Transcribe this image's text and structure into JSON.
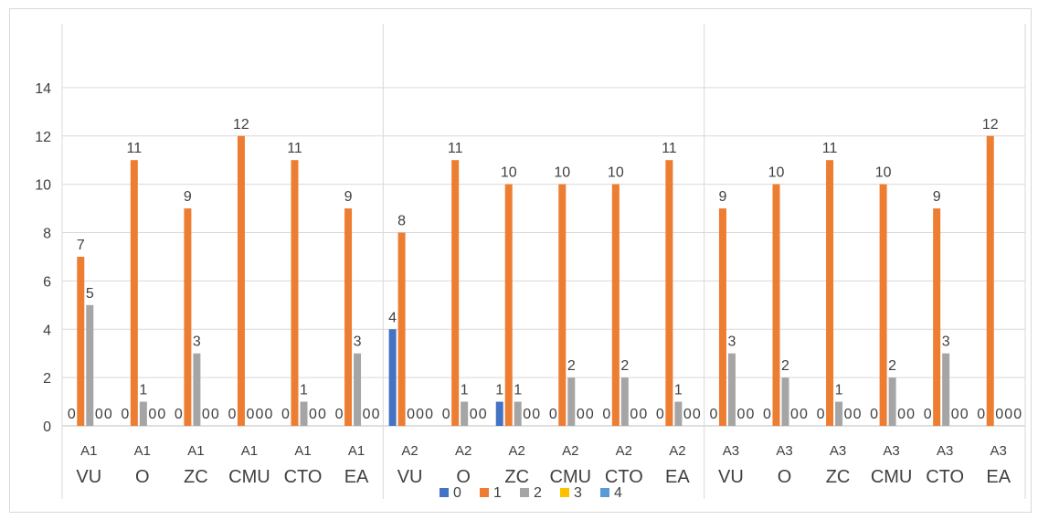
{
  "chart_data": {
    "type": "bar",
    "title": "",
    "xlabel": "",
    "ylabel": "",
    "ylim": [
      0,
      16
    ],
    "yticks": [
      0,
      2,
      4,
      6,
      8,
      10,
      12,
      14
    ],
    "grid": true,
    "legend_position": "bottom",
    "categories": [
      {
        "top": "A1",
        "bottom": "VU"
      },
      {
        "top": "A1",
        "bottom": "O"
      },
      {
        "top": "A1",
        "bottom": "ZC"
      },
      {
        "top": "A1",
        "bottom": "CMU"
      },
      {
        "top": "A1",
        "bottom": "CTO"
      },
      {
        "top": "A1",
        "bottom": "EA"
      },
      {
        "top": "A2",
        "bottom": "VU"
      },
      {
        "top": "A2",
        "bottom": "O"
      },
      {
        "top": "A2",
        "bottom": "ZC"
      },
      {
        "top": "A2",
        "bottom": "CMU"
      },
      {
        "top": "A2",
        "bottom": "CTO"
      },
      {
        "top": "A2",
        "bottom": "EA"
      },
      {
        "top": "A3",
        "bottom": "VU"
      },
      {
        "top": "A3",
        "bottom": "O"
      },
      {
        "top": "A3",
        "bottom": "ZC"
      },
      {
        "top": "A3",
        "bottom": "CMU"
      },
      {
        "top": "A3",
        "bottom": "CTO"
      },
      {
        "top": "A3",
        "bottom": "EA"
      }
    ],
    "series": [
      {
        "name": "0",
        "color": "#4472c4",
        "values": [
          0,
          0,
          0,
          0,
          0,
          0,
          4,
          0,
          1,
          0,
          0,
          0,
          0,
          0,
          0,
          0,
          0,
          0
        ]
      },
      {
        "name": "1",
        "color": "#ed7d31",
        "values": [
          7,
          11,
          9,
          12,
          11,
          9,
          8,
          11,
          10,
          10,
          10,
          11,
          9,
          10,
          11,
          10,
          9,
          12
        ]
      },
      {
        "name": "2",
        "color": "#a5a5a5",
        "values": [
          5,
          1,
          3,
          0,
          1,
          3,
          0,
          1,
          1,
          2,
          2,
          1,
          3,
          2,
          1,
          2,
          3,
          0
        ]
      },
      {
        "name": "3",
        "color": "#ffc000",
        "values": [
          0,
          0,
          0,
          0,
          0,
          0,
          0,
          0,
          0,
          0,
          0,
          0,
          0,
          0,
          0,
          0,
          0,
          0
        ]
      },
      {
        "name": "4",
        "color": "#5b9bd5",
        "values": [
          0,
          0,
          0,
          0,
          0,
          0,
          0,
          0,
          0,
          0,
          0,
          0,
          0,
          0,
          0,
          0,
          0,
          0
        ]
      }
    ]
  }
}
